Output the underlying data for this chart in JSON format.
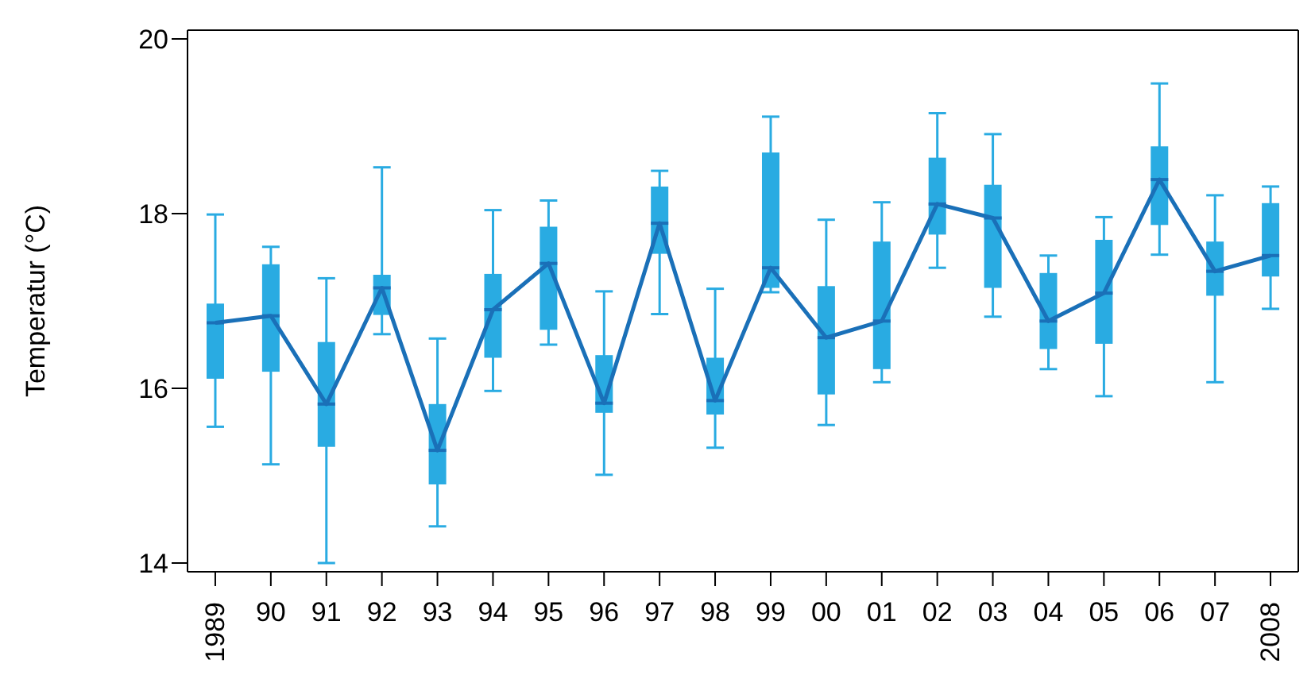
{
  "chart_data": {
    "type": "box",
    "ylabel": "Temperatur (°C)",
    "categories": [
      "1989",
      "90",
      "91",
      "92",
      "93",
      "94",
      "95",
      "96",
      "97",
      "98",
      "99",
      "00",
      "01",
      "02",
      "03",
      "04",
      "05",
      "06",
      "07",
      "2008"
    ],
    "ylim": [
      13.9,
      20.1
    ],
    "yticks": [
      14,
      16,
      18,
      20
    ],
    "grid": false,
    "marker": "none",
    "series": [
      {
        "type": "box",
        "color": "#29abe2",
        "boxes": [
          {
            "low": 15.56,
            "q1": 16.11,
            "median": 16.75,
            "q3": 16.97,
            "high": 17.99
          },
          {
            "low": 15.13,
            "q1": 16.19,
            "median": 16.83,
            "q3": 17.42,
            "high": 17.62
          },
          {
            "low": 14.0,
            "q1": 15.33,
            "median": 15.82,
            "q3": 16.53,
            "high": 17.26
          },
          {
            "low": 16.62,
            "q1": 16.84,
            "median": 17.15,
            "q3": 17.3,
            "high": 18.53
          },
          {
            "low": 14.42,
            "q1": 14.9,
            "median": 15.29,
            "q3": 15.82,
            "high": 16.57
          },
          {
            "low": 15.97,
            "q1": 16.35,
            "median": 16.9,
            "q3": 17.31,
            "high": 18.04
          },
          {
            "low": 16.5,
            "q1": 16.67,
            "median": 17.43,
            "q3": 17.85,
            "high": 18.15
          },
          {
            "low": 15.01,
            "q1": 15.72,
            "median": 15.83,
            "q3": 16.38,
            "high": 17.11
          },
          {
            "low": 16.85,
            "q1": 17.54,
            "median": 17.89,
            "q3": 18.31,
            "high": 18.49
          },
          {
            "low": 15.32,
            "q1": 15.7,
            "median": 15.86,
            "q3": 16.35,
            "high": 17.14
          },
          {
            "low": 17.1,
            "q1": 17.15,
            "median": 17.38,
            "q3": 18.7,
            "high": 19.11
          },
          {
            "low": 15.58,
            "q1": 15.93,
            "median": 16.58,
            "q3": 17.17,
            "high": 17.93
          },
          {
            "low": 16.07,
            "q1": 16.22,
            "median": 16.77,
            "q3": 17.68,
            "high": 18.13
          },
          {
            "low": 17.38,
            "q1": 17.76,
            "median": 18.11,
            "q3": 18.64,
            "high": 19.15
          },
          {
            "low": 16.82,
            "q1": 17.15,
            "median": 17.95,
            "q3": 18.33,
            "high": 18.91
          },
          {
            "low": 16.22,
            "q1": 16.45,
            "median": 16.77,
            "q3": 17.32,
            "high": 17.52
          },
          {
            "low": 15.91,
            "q1": 16.51,
            "median": 17.09,
            "q3": 17.7,
            "high": 17.96
          },
          {
            "low": 17.53,
            "q1": 17.87,
            "median": 18.39,
            "q3": 18.77,
            "high": 19.49
          },
          {
            "low": 16.07,
            "q1": 17.06,
            "median": 17.34,
            "q3": 17.68,
            "high": 18.21
          },
          {
            "low": 16.91,
            "q1": 17.28,
            "median": 17.52,
            "q3": 18.12,
            "high": 18.31
          }
        ]
      },
      {
        "type": "line",
        "color": "#1a70b8",
        "values": [
          16.75,
          16.83,
          15.82,
          17.15,
          15.29,
          16.9,
          17.43,
          15.83,
          17.89,
          15.86,
          17.38,
          16.58,
          16.77,
          18.11,
          17.95,
          16.77,
          17.09,
          18.39,
          17.34,
          17.52
        ]
      }
    ]
  }
}
